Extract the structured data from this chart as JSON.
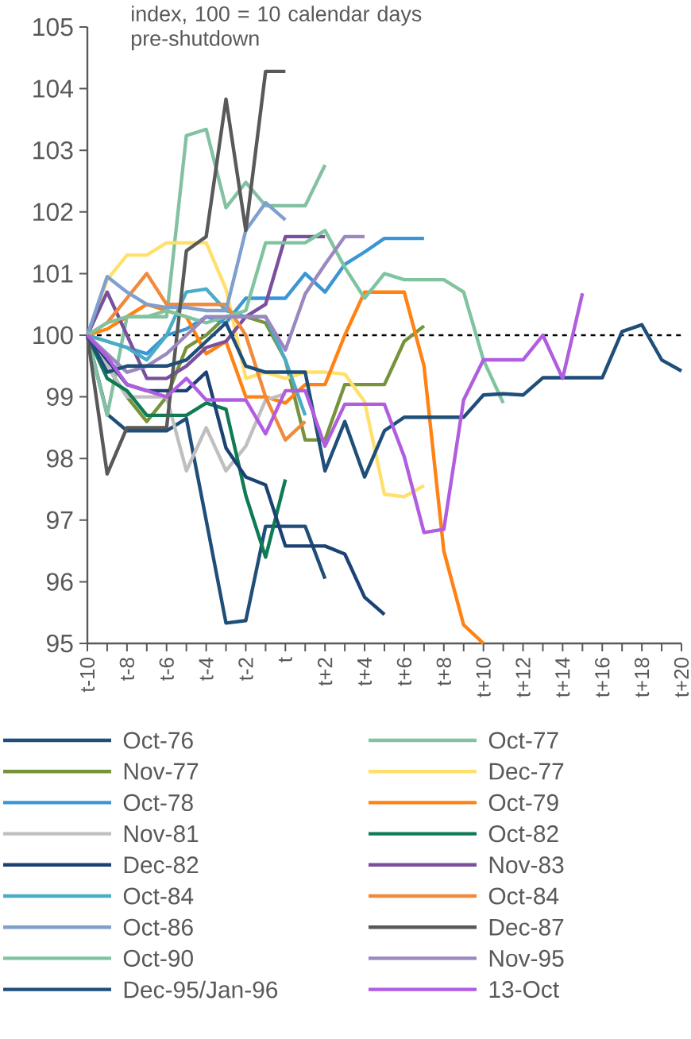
{
  "chart_data": {
    "type": "line",
    "annotations": [
      "index, 100 = 10 calendar days pre-shutdown"
    ],
    "categories": [
      "t-10",
      null,
      "t-8",
      null,
      "t-6",
      null,
      "t-4",
      null,
      "t-2",
      null,
      "t",
      null,
      "t+2",
      null,
      "t+4",
      null,
      "t+6",
      null,
      "t+8",
      null,
      "t+10",
      null,
      "t+12",
      null,
      "t+14",
      null,
      "t+16",
      null,
      "t+18",
      null,
      "t+20"
    ],
    "ylim": [
      95,
      105
    ],
    "yticks": [
      95,
      96,
      97,
      98,
      99,
      100,
      101,
      102,
      103,
      104,
      105
    ],
    "legend": "bottom",
    "ref_lines": [
      {
        "axis": "y",
        "value": 100,
        "color": "#000000",
        "line_style": "dashed"
      }
    ],
    "series": [
      {
        "name": "Oct-76",
        "color": "#1f4e79",
        "values": [
          100,
          98.72,
          98.45,
          98.45,
          98.45,
          98.65,
          97.0,
          95.33,
          95.37,
          96.9,
          96.9,
          96.9,
          96.05,
          null,
          null,
          null,
          null,
          null,
          null,
          null,
          null,
          null,
          null,
          null,
          null,
          null,
          null,
          null,
          null,
          null,
          null
        ]
      },
      {
        "name": "Oct-77",
        "color": "#84c1a3",
        "values": [
          100,
          98.7,
          100.3,
          100.3,
          100.3,
          103.24,
          103.34,
          102.07,
          102.48,
          102.1,
          102.1,
          102.1,
          102.76,
          null,
          null,
          null,
          null,
          null,
          null,
          null,
          null,
          null,
          null,
          null,
          null,
          null,
          null,
          null,
          null,
          null,
          null
        ]
      },
      {
        "name": "Nov-77",
        "color": "#77933c",
        "values": [
          100,
          99.5,
          99.0,
          98.6,
          99.0,
          99.8,
          100.0,
          100.3,
          100.3,
          100.2,
          99.6,
          98.3,
          98.3,
          99.2,
          99.2,
          99.2,
          99.9,
          100.15,
          null,
          null,
          null,
          null,
          null,
          null,
          null,
          null,
          null,
          null,
          null,
          null,
          null
        ]
      },
      {
        "name": "Dec-77",
        "color": "#ffe06b",
        "values": [
          100,
          100.9,
          101.3,
          101.3,
          101.5,
          101.5,
          101.5,
          100.75,
          99.3,
          99.4,
          99.3,
          99.4,
          99.4,
          99.37,
          98.92,
          97.42,
          97.38,
          97.56,
          null,
          null,
          null,
          null,
          null,
          null,
          null,
          null,
          null,
          null,
          null,
          null,
          null
        ]
      },
      {
        "name": "Oct-78",
        "color": "#3a96d4",
        "values": [
          100,
          99.9,
          99.8,
          99.7,
          100.0,
          100.1,
          100.3,
          100.2,
          100.6,
          100.6,
          100.6,
          101.0,
          100.7,
          101.15,
          101.35,
          101.57,
          101.57,
          101.57,
          null,
          null,
          null,
          null,
          null,
          null,
          null,
          null,
          null,
          null,
          null,
          null,
          null
        ]
      },
      {
        "name": "Oct-79",
        "color": "#ff8213",
        "values": [
          100,
          100.1,
          100.3,
          100.5,
          100.4,
          100.3,
          99.7,
          99.9,
          99.0,
          99.0,
          98.9,
          99.2,
          99.2,
          100.0,
          100.7,
          100.7,
          100.7,
          99.5,
          96.5,
          95.3,
          95.0,
          null,
          null,
          null,
          null,
          null,
          null,
          null,
          null,
          null,
          null
        ]
      },
      {
        "name": "Nov-81",
        "color": "#bfbfbf",
        "values": [
          100,
          99.5,
          99.0,
          99.0,
          99.0,
          97.8,
          98.5,
          97.8,
          98.2,
          98.95,
          99.05,
          null,
          null,
          null,
          null,
          null,
          null,
          null,
          null,
          null,
          null,
          null,
          null,
          null,
          null,
          null,
          null,
          null,
          null,
          null,
          null
        ]
      },
      {
        "name": "Oct-82",
        "color": "#0e7b52",
        "values": [
          100,
          99.3,
          99.1,
          98.7,
          98.7,
          98.7,
          98.9,
          98.8,
          97.4,
          96.4,
          97.66,
          null,
          null,
          null,
          null,
          null,
          null,
          null,
          null,
          null,
          null,
          null,
          null,
          null,
          null,
          null,
          null,
          null,
          null,
          null,
          null
        ]
      },
      {
        "name": "Dec-82",
        "color": "#1c4275",
        "values": [
          100,
          99.6,
          99.2,
          99.1,
          99.1,
          99.1,
          99.4,
          98.17,
          97.7,
          97.57,
          96.58,
          96.58,
          96.58,
          96.45,
          95.75,
          95.47,
          null,
          null,
          null,
          null,
          null,
          null,
          null,
          null,
          null,
          null,
          null,
          null,
          null,
          null,
          null
        ]
      },
      {
        "name": "Nov-83",
        "color": "#7a4f9e",
        "values": [
          100,
          100.7,
          100.0,
          99.3,
          99.3,
          99.5,
          99.8,
          99.9,
          100.3,
          100.5,
          101.6,
          101.6,
          101.6,
          null,
          null,
          null,
          null,
          null,
          null,
          null,
          null,
          null,
          null,
          null,
          null,
          null,
          null,
          null,
          null,
          null,
          null
        ]
      },
      {
        "name": "Oct-84",
        "color": "#4bacc6",
        "values": [
          100,
          99.9,
          99.8,
          99.6,
          100.0,
          100.7,
          100.75,
          100.4,
          100.3,
          100.3,
          99.6,
          98.7,
          null,
          null,
          null,
          null,
          null,
          null,
          null,
          null,
          null,
          null,
          null,
          null,
          null,
          null,
          null,
          null,
          null,
          null,
          null
        ]
      },
      {
        "name": "Oct-84",
        "color": "#f08a3c",
        "values": [
          100,
          100.2,
          100.6,
          101.0,
          100.5,
          100.5,
          100.5,
          100.5,
          100.0,
          99.0,
          98.3,
          98.6,
          null,
          null,
          null,
          null,
          null,
          null,
          null,
          null,
          null,
          null,
          null,
          null,
          null,
          null,
          null,
          null,
          null,
          null,
          null
        ]
      },
      {
        "name": "Oct-86",
        "color": "#7f9fcf",
        "values": [
          100,
          100.95,
          100.7,
          100.5,
          100.45,
          100.45,
          100.4,
          100.4,
          101.7,
          102.15,
          101.87,
          null,
          null,
          null,
          null,
          null,
          null,
          null,
          null,
          null,
          null,
          null,
          null,
          null,
          null,
          null,
          null,
          null,
          null,
          null,
          null
        ]
      },
      {
        "name": "Dec-87",
        "color": "#595959",
        "values": [
          100,
          97.75,
          98.5,
          98.5,
          98.5,
          101.37,
          101.6,
          103.83,
          101.7,
          104.28,
          104.28,
          null,
          null,
          null,
          null,
          null,
          null,
          null,
          null,
          null,
          null,
          null,
          null,
          null,
          null,
          null,
          null,
          null,
          null,
          null,
          null
        ]
      },
      {
        "name": "Oct-90",
        "color": "#7fc49f",
        "values": [
          100,
          100.2,
          100.3,
          100.3,
          100.4,
          100.3,
          100.2,
          100.3,
          100.4,
          101.5,
          101.5,
          101.5,
          101.7,
          101.1,
          100.6,
          101.0,
          100.9,
          100.9,
          100.9,
          100.7,
          99.6,
          98.9,
          null,
          null,
          null,
          null,
          null,
          null,
          null,
          null,
          null
        ]
      },
      {
        "name": "Nov-95",
        "color": "#9a88c0",
        "values": [
          100,
          99.7,
          99.4,
          99.5,
          99.7,
          100.0,
          100.3,
          100.3,
          100.3,
          100.3,
          99.76,
          100.67,
          101.15,
          101.6,
          101.6,
          null,
          null,
          null,
          null,
          null,
          null,
          null,
          null,
          null,
          null,
          null,
          null,
          null,
          null,
          null,
          null
        ]
      },
      {
        "name": "Dec-95/Jan-96",
        "color": "#1f4e79",
        "values": [
          100,
          99.4,
          99.5,
          99.5,
          99.5,
          99.6,
          99.9,
          100.2,
          99.5,
          99.4,
          99.4,
          99.4,
          97.8,
          98.6,
          97.7,
          98.45,
          98.67,
          98.67,
          98.67,
          98.67,
          99.03,
          99.05,
          99.03,
          99.31,
          99.31,
          99.31,
          99.31,
          100.06,
          100.17,
          99.6,
          99.42
        ]
      },
      {
        "name": "13-Oct",
        "color": "#b05de0",
        "values": [
          100,
          99.65,
          99.2,
          99.1,
          99.0,
          99.3,
          98.95,
          98.95,
          98.95,
          98.4,
          99.1,
          99.1,
          98.2,
          98.88,
          98.88,
          98.88,
          98.03,
          96.8,
          96.85,
          98.95,
          99.6,
          99.6,
          99.6,
          100.0,
          99.3,
          100.68,
          null,
          null,
          null,
          null,
          null
        ]
      }
    ]
  }
}
